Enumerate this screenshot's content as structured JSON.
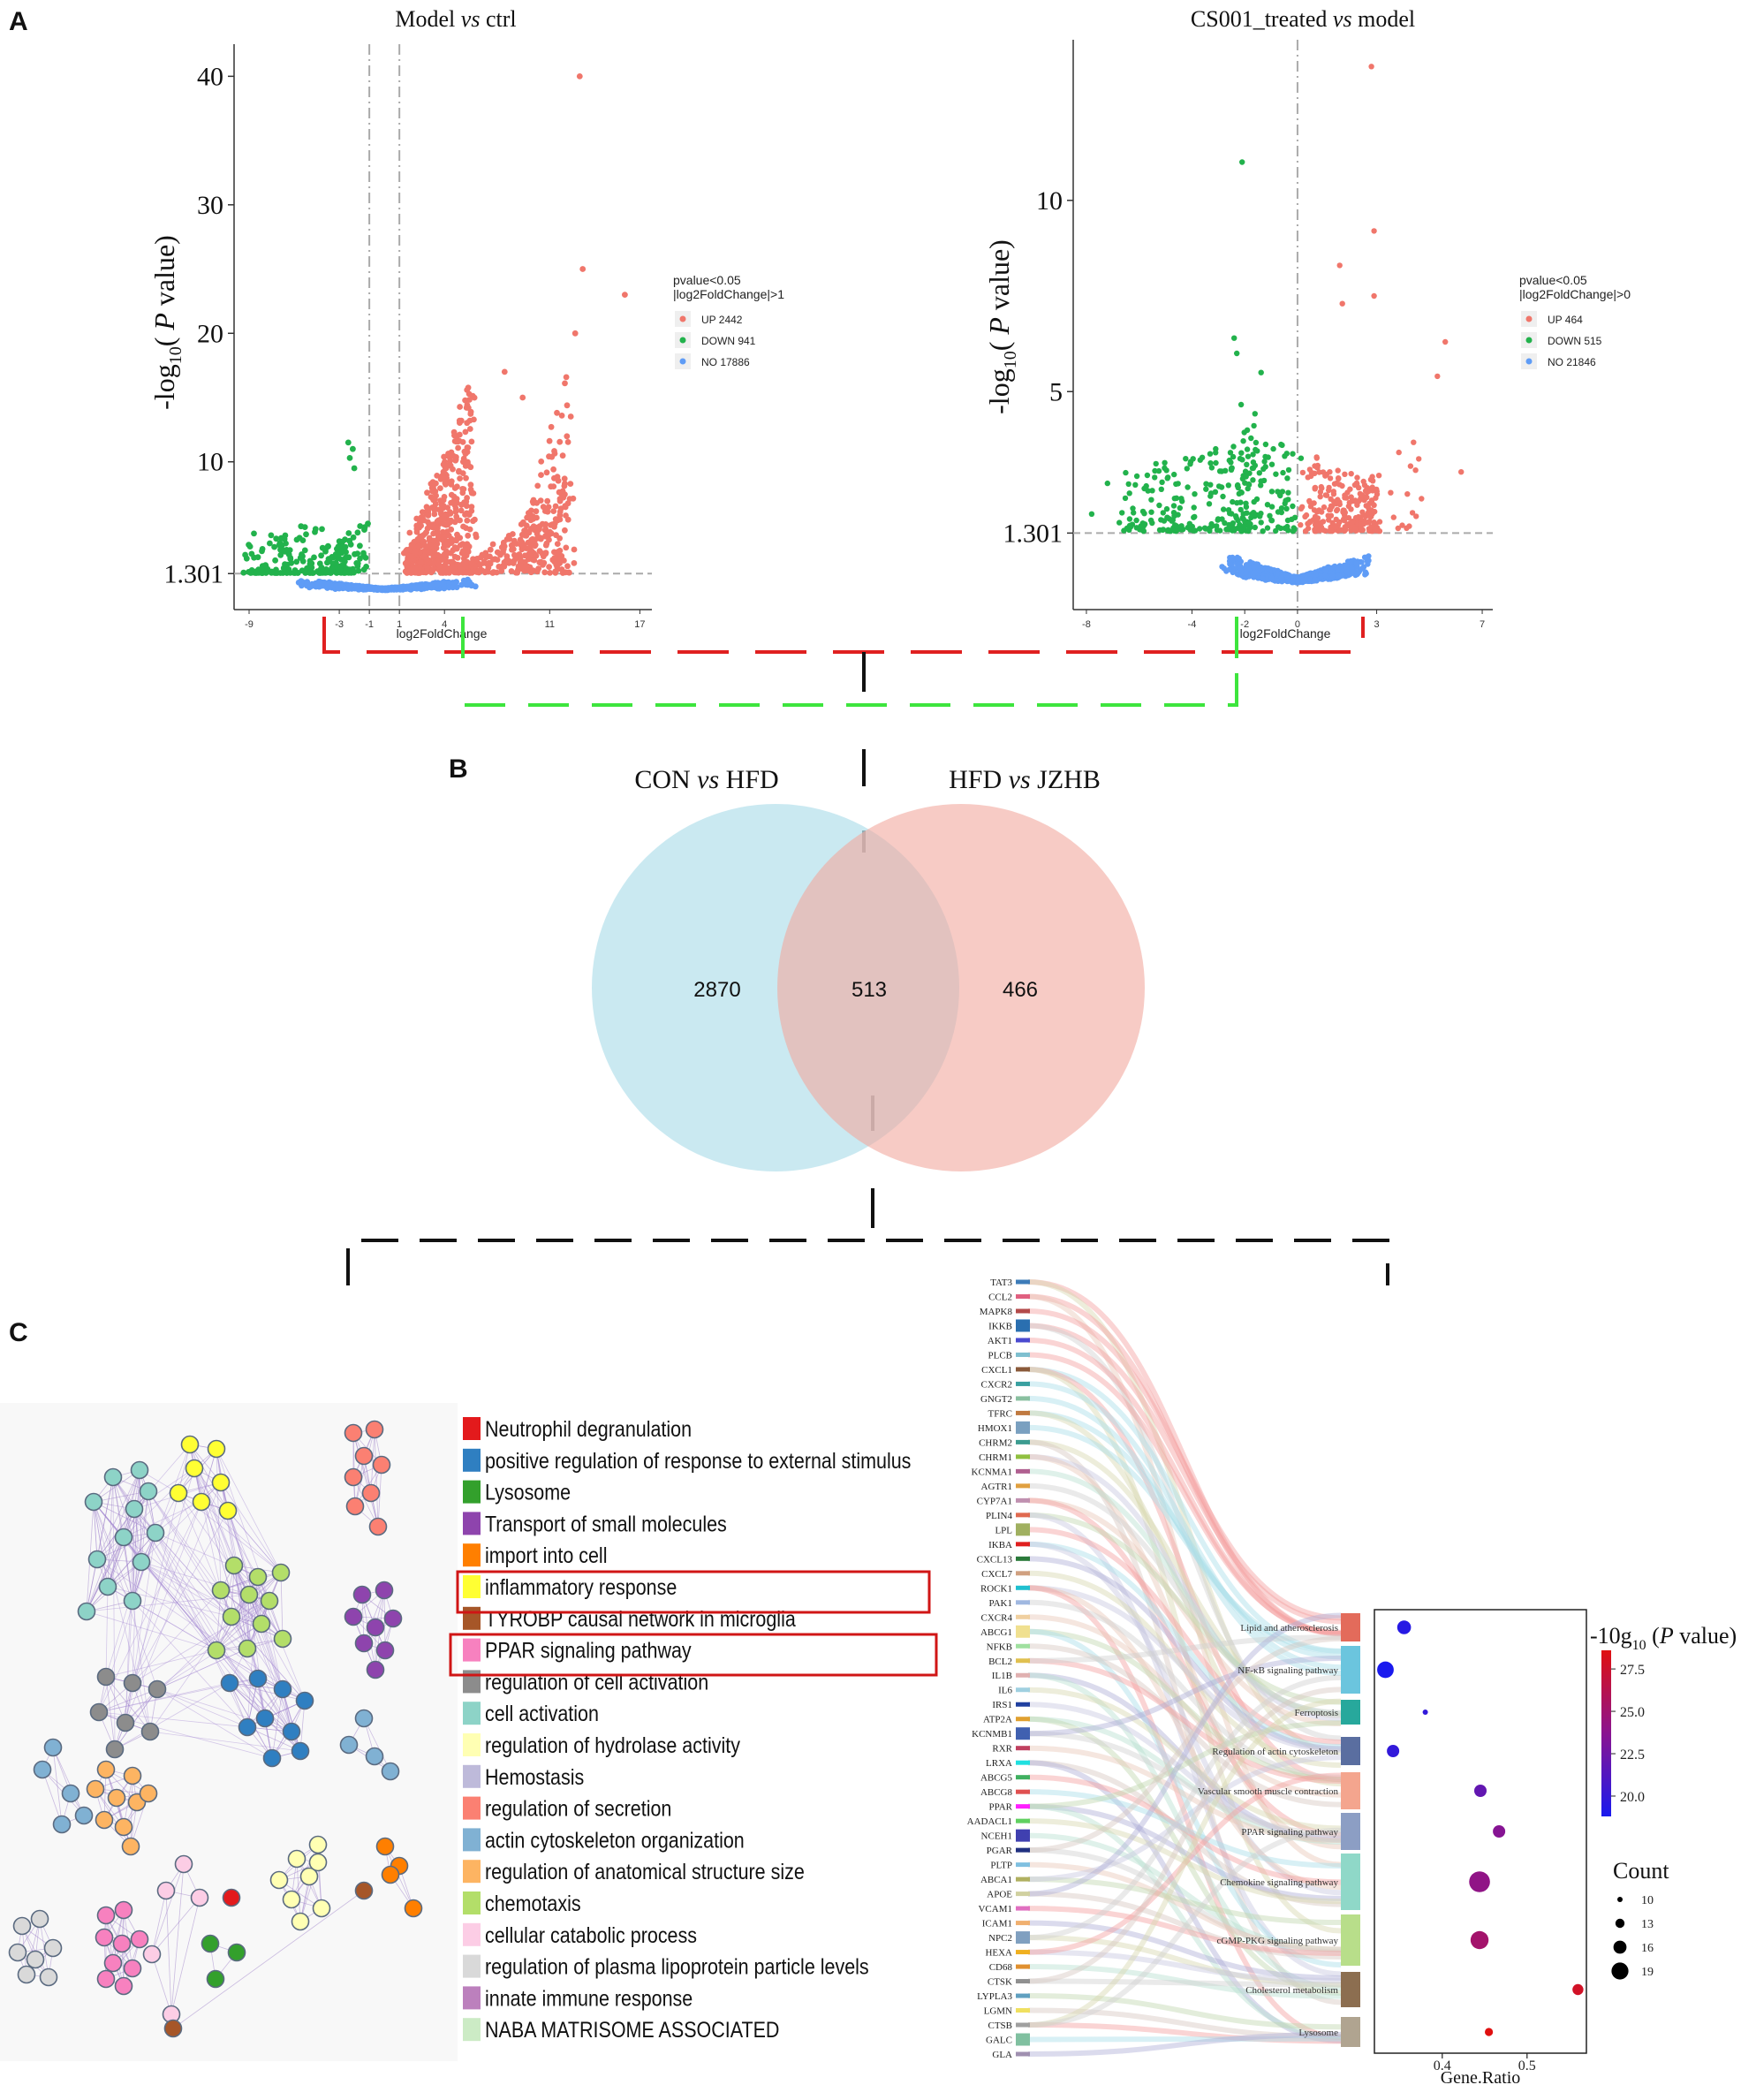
{
  "panel_labels": {
    "a": "A",
    "b": "B",
    "c": "C"
  },
  "colors": {
    "up": "#f0766b",
    "down": "#22b24c",
    "no": "#5f9cf6",
    "venn_left": "#b8e1ec",
    "venn_right": "#f4b8b0",
    "dash_red": "#e02020",
    "dash_green": "#3de53d"
  },
  "volcano": [
    {
      "title_pre": "Model ",
      "title_vs": "vs",
      "title_post": " ctrl",
      "ylabel_pre": "-log",
      "ylabel_sub": "10",
      "ylabel_open": "( ",
      "ylabel_p": "P",
      "ylabel_post": " value)",
      "xlabel": "log2FoldChange",
      "legend_title_1": "pvalue<0.05",
      "legend_title_2": "|log2FoldChange|>1",
      "legend": [
        "UP 2442",
        "DOWN 941",
        "NO 17886"
      ],
      "yticks": [
        "1.301",
        "10",
        "20",
        "30",
        "40"
      ],
      "xticks": [
        "-9",
        "-3",
        "-1",
        "1",
        "4",
        "11",
        "17"
      ]
    },
    {
      "title_pre": "CS001_treated ",
      "title_vs": "vs",
      "title_post": " model",
      "ylabel_pre": "-log",
      "ylabel_sub": "10",
      "ylabel_open": "( ",
      "ylabel_p": "P",
      "ylabel_post": " value)",
      "xlabel": "log2FoldChange",
      "legend_title_1": "pvalue<0.05",
      "legend_title_2": "|log2FoldChange|>0",
      "legend": [
        "UP 464",
        "DOWN 515",
        "NO 21846"
      ],
      "yticks": [
        "1.301",
        "5",
        "10"
      ],
      "xticks": [
        "-8",
        "-4",
        "-2",
        "0",
        "3",
        "7"
      ]
    }
  ],
  "venn": {
    "left_pre": "CON ",
    "left_vs": "vs",
    "left_post": " HFD",
    "right_pre": "HFD ",
    "right_vs": "vs",
    "right_post": " JZHB",
    "left_only": "2870",
    "both": "513",
    "right_only": "466"
  },
  "enrichment_legend": [
    {
      "label": "Neutrophil degranulation",
      "color": "#e31a1c"
    },
    {
      "label": "positive regulation of response to external stimulus",
      "color": "#2f7fc1"
    },
    {
      "label": "Lysosome",
      "color": "#33a02c"
    },
    {
      "label": "Transport of small molecules",
      "color": "#8e44ad"
    },
    {
      "label": "import into cell",
      "color": "#ff7f00"
    },
    {
      "label": "inflammatory response",
      "color": "#ffff33"
    },
    {
      "label": "TYROBP causal network in microglia",
      "color": "#a65628"
    },
    {
      "label": "PPAR signaling pathway",
      "color": "#f781bf"
    },
    {
      "label": "regulation of cell activation",
      "color": "#8c8c8c"
    },
    {
      "label": "cell activation",
      "color": "#8dd3c7"
    },
    {
      "label": "regulation of hydrolase activity",
      "color": "#ffffb3"
    },
    {
      "label": "Hemostasis",
      "color": "#bebada"
    },
    {
      "label": "regulation of secretion",
      "color": "#fb8072"
    },
    {
      "label": "actin cytoskeleton organization",
      "color": "#80b1d3"
    },
    {
      "label": "regulation of anatomical structure size",
      "color": "#fdb462"
    },
    {
      "label": "chemotaxis",
      "color": "#b3de69"
    },
    {
      "label": "cellular catabolic process",
      "color": "#fccde5"
    },
    {
      "label": "regulation of plasma lipoprotein particle levels",
      "color": "#d9d9d9"
    },
    {
      "label": "innate immune response",
      "color": "#bc80bd"
    },
    {
      "label": "NABA MATRISOME ASSOCIATED",
      "color": "#ccebc5"
    }
  ],
  "sankey_genes": [
    "TAT3",
    "CCL2",
    "MAPK8",
    "IKKB",
    "AKT1",
    "PLCB",
    "CXCL1",
    "CXCR2",
    "GNGT2",
    "TFRC",
    "HMOX1",
    "CHRM2",
    "CHRM1",
    "KCNMA1",
    "AGTR1",
    "CYP7A1",
    "PLIN4",
    "LPL",
    "IKBA",
    "CXCL13",
    "CXCL7",
    "ROCK1",
    "PAK1",
    "CXCR4",
    "ABCG1",
    "NFKB",
    "BCL2",
    "IL1B",
    "IL6",
    "IRS1",
    "ATP2A",
    "KCNMB1",
    "RXR",
    "LRXA",
    "ABCG5",
    "ABCG8",
    "PPAR",
    "AADACL1",
    "NCEH1",
    "PGAR",
    "PLTP",
    "ABCA1",
    "APOE",
    "VCAM1",
    "ICAM1",
    "NPC2",
    "HEXA",
    "CD68",
    "CTSK",
    "LYPLA3",
    "LGMN",
    "CTSB",
    "GALC",
    "GLA"
  ],
  "chart_data": {
    "type": "scatter",
    "title": "",
    "xlabel": "Gene.Ratio",
    "ylabel": "",
    "xticks": [
      "0.4",
      "0.5"
    ],
    "xlim": [
      0.32,
      0.57
    ],
    "categories": [
      "Lipid and atherosclerosis",
      "NF-κB signaling pathway",
      "Ferroptosis",
      "Regulation of actin cytoskeleton",
      "Vascular smooth muscle contraction",
      "PPAR signaling pathway",
      "Chemokine signaling pathway",
      "cGMP-PKG signaling pathway",
      "Cholesterol metabolism",
      "Lysosome"
    ],
    "series": [
      {
        "category": "Lipid and atherosclerosis",
        "gene_ratio": 0.355,
        "count": 14,
        "neglog10p": 19.0
      },
      {
        "category": "NF-κB signaling pathway",
        "gene_ratio": 0.333,
        "count": 16,
        "neglog10p": 18.5
      },
      {
        "category": "Ferroptosis",
        "gene_ratio": 0.38,
        "count": 8,
        "neglog10p": 19.5
      },
      {
        "category": "Regulation of actin cytoskeleton",
        "gene_ratio": 0.342,
        "count": 13,
        "neglog10p": 19.5
      },
      {
        "category": "Vascular smooth muscle contraction",
        "gene_ratio": 0.445,
        "count": 13,
        "neglog10p": 21.5
      },
      {
        "category": "PPAR signaling pathway",
        "gene_ratio": 0.467,
        "count": 13,
        "neglog10p": 23.0
      },
      {
        "category": "Chemokine signaling pathway",
        "gene_ratio": 0.444,
        "count": 19,
        "neglog10p": 23.5
      },
      {
        "category": "cGMP-PKG signaling pathway",
        "gene_ratio": 0.444,
        "count": 17,
        "neglog10p": 24.5
      },
      {
        "category": "Cholesterol metabolism",
        "gene_ratio": 0.56,
        "count": 12,
        "neglog10p": 27.0
      },
      {
        "category": "Lysosome",
        "gene_ratio": 0.455,
        "count": 10,
        "neglog10p": 27.8
      }
    ],
    "colorbar": {
      "title_pre": "-10g",
      "title_sub": "10",
      "title_open": " (",
      "title_p": "P",
      "title_post": " value)",
      "ticks": [
        "27.5",
        "25.0",
        "22.5",
        "20.0"
      ],
      "low_color": "#1a1aee",
      "high_color": "#e01010"
    },
    "size_legend": {
      "title": "Count",
      "values": [
        "10",
        "13",
        "16",
        "19"
      ]
    }
  }
}
